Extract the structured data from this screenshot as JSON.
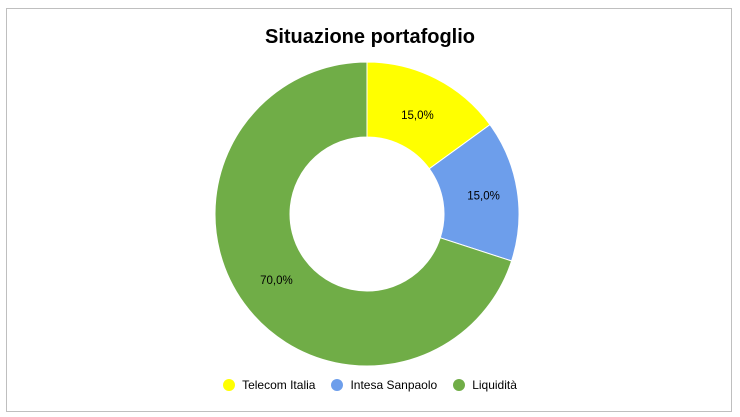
{
  "chart_data": {
    "type": "pie",
    "variant": "donut",
    "title": "Situazione portafoglio",
    "legend_position": "bottom",
    "slices": [
      {
        "label": "Telecom Italia",
        "value": 15.0,
        "display": "15,0%",
        "color": "#ffff00"
      },
      {
        "label": "Intesa Sanpaolo",
        "value": 15.0,
        "display": "15,0%",
        "color": "#6d9eeb"
      },
      {
        "label": "Liquidità",
        "value": 70.0,
        "display": "70,0%",
        "color": "#70ad47"
      }
    ]
  }
}
